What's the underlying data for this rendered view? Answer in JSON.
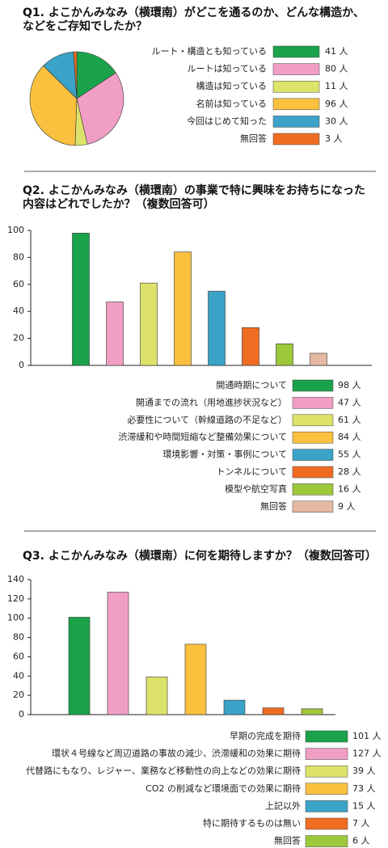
{
  "chart_data": [
    {
      "type": "pie",
      "title": "Q1. よこかんみなみ（横環南）がどこを通るのか、どんな構造か、などをご存知でしたか？",
      "categories": [
        "ルート・構造とも知っている",
        "ルートは知っている",
        "構造は知っている",
        "名前は知っている",
        "今回はじめて知った",
        "無回答"
      ],
      "values": [
        41,
        80,
        11,
        96,
        30,
        3
      ],
      "value_labels": [
        "41 人",
        "80 人",
        "11 人",
        "96 人",
        "30 人",
        "3 人"
      ],
      "colors": [
        "#1aa34a",
        "#f09ec4",
        "#dde36a",
        "#fbc03e",
        "#3ba3c7",
        "#ef6c22"
      ]
    },
    {
      "type": "bar",
      "title": "Q2. よこかんみなみ（横環南）の事業で特に興味をお持ちになった内容はどれでしたか？（複数回答可）",
      "categories": [
        "開通時期について",
        "開通までの流れ（用地進捗状況など）",
        "必要性について（幹線道路の不足など）",
        "渋滞緩和や時間短縮など整備効果について",
        "環境影響・対策・事例について",
        "トンネルについて",
        "模型や航空写真",
        "無回答"
      ],
      "values": [
        98,
        47,
        61,
        84,
        55,
        28,
        16,
        9
      ],
      "value_labels": [
        "98 人",
        "47 人",
        "61 人",
        "84 人",
        "55 人",
        "28 人",
        "16 人",
        "9 人"
      ],
      "colors": [
        "#1aa34a",
        "#f09ec4",
        "#dde36a",
        "#fbc03e",
        "#3ba3c7",
        "#ef6c22",
        "#9cc83a",
        "#e4b8a2"
      ],
      "ylim": [
        0,
        100
      ],
      "yticks": [
        0,
        20,
        40,
        60,
        80,
        100
      ]
    },
    {
      "type": "bar",
      "title": "Q3. よこかんみなみ（横環南）に何を期待しますか？（複数回答可）",
      "categories": [
        "早期の完成を期待",
        "環状４号線など周辺道路の事故の減少、渋滞緩和の効果に期待",
        "代替路にもなり、レジャー、業務など移動性の向上などの効果に期待",
        "CO2 の削減など環境面での効果に期待",
        "上記以外",
        "特に期待するものは無い",
        "無回答"
      ],
      "values": [
        101,
        127,
        39,
        73,
        15,
        7,
        6
      ],
      "value_labels": [
        "101 人",
        "127 人",
        "39 人",
        "73 人",
        "15 人",
        "7 人",
        "6 人"
      ],
      "colors": [
        "#1aa34a",
        "#f09ec4",
        "#dde36a",
        "#fbc03e",
        "#3ba3c7",
        "#ef6c22",
        "#9cc83a"
      ],
      "ylim": [
        0,
        140
      ],
      "yticks": [
        0,
        20,
        40,
        60,
        80,
        100,
        120,
        140
      ]
    }
  ]
}
